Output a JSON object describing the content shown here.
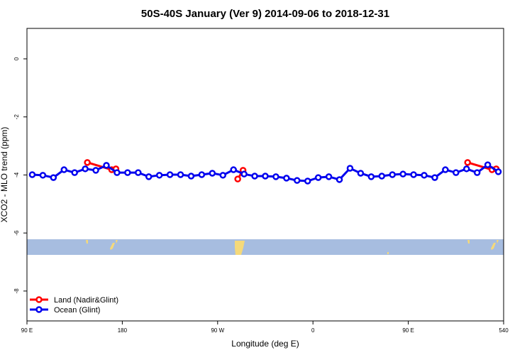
{
  "chart_data": {
    "type": "line",
    "title": "50S-40S January (Ver 9)   2014-09-06 to 2018-12-31",
    "x_label": "Longitude (deg E)",
    "y_label": "XCO2 - MLO trend (ppm)",
    "xlim": [
      90,
      540
    ],
    "ylim": [
      -9.03,
      1.05
    ],
    "xticks": [
      {
        "value": 90,
        "label": "90 E"
      },
      180,
      {
        "value": 270,
        "label": "90 W"
      },
      {
        "value": 360,
        "label": "0"
      },
      {
        "value": 450,
        "label": "90 E"
      },
      540
    ],
    "yticks": [
      0,
      -2,
      -4,
      -6,
      -8
    ],
    "legend_position": "bottom-left",
    "series": [
      {
        "name": "Land (Nadir&Glint)",
        "color": "#ff0000",
        "x": [
          147,
          170,
          174,
          null,
          289,
          294,
          null,
          506,
          529,
          533
        ],
        "values": [
          -3.57,
          -3.82,
          -3.79,
          null,
          -4.14,
          -3.84,
          null,
          -3.57,
          -3.82,
          -3.79
        ]
      },
      {
        "name": "Ocean (Glint)",
        "color": "#0000ee",
        "x": [
          95,
          105,
          115,
          125,
          135,
          145,
          155,
          165,
          175,
          185,
          195,
          205,
          215,
          225,
          235,
          245,
          255,
          265,
          275,
          285,
          295,
          305,
          315,
          325,
          335,
          345,
          355,
          365,
          375,
          385,
          395,
          405,
          415,
          425,
          435,
          445,
          455,
          465,
          475,
          485,
          495,
          505,
          515,
          525,
          535
        ],
        "values": [
          -3.99,
          -4.01,
          -4.09,
          -3.82,
          -3.92,
          -3.79,
          -3.84,
          -3.67,
          -3.92,
          -3.92,
          -3.92,
          -4.06,
          -4.01,
          -3.99,
          -3.99,
          -4.04,
          -3.99,
          -3.94,
          -4.01,
          -3.82,
          -3.97,
          -4.04,
          -4.04,
          -4.06,
          -4.11,
          -4.19,
          -4.21,
          -4.09,
          -4.06,
          -4.16,
          -3.77,
          -3.94,
          -4.06,
          -4.04,
          -3.99,
          -3.97,
          -3.99,
          -4.01,
          -4.09,
          -3.82,
          -3.92,
          -3.79,
          -3.92,
          -3.65,
          -3.89
        ]
      }
    ]
  }
}
